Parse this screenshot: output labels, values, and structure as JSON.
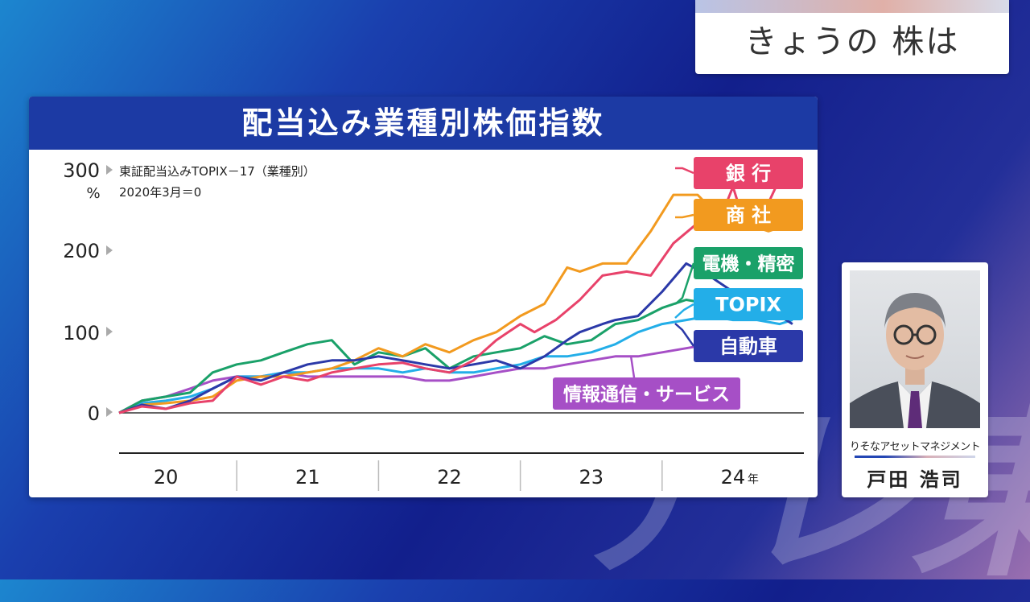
{
  "top_banner": {
    "title": "きょうの 株は"
  },
  "profile": {
    "organization": "りそなアセットマネジメント",
    "name": "戸田 浩司"
  },
  "watermark": "テレ東",
  "colors": {
    "bank": "#e8426a",
    "trading": "#f29a1f",
    "electronics": "#1aa169",
    "topix": "#23aee8",
    "auto": "#2b39a8",
    "infotech": "#a64fc6"
  },
  "chart_data": {
    "type": "line",
    "title": "配当込み業種別株価指数",
    "subtitle_line1": "東証配当込みTOPIX－17（業種別）",
    "subtitle_line2": "2020年3月＝0",
    "y_unit": "%",
    "ylim": [
      0,
      300
    ],
    "y_ticks": [
      "0",
      "100",
      "200",
      "300"
    ],
    "x_axis": {
      "range": [
        2020.17,
        2025.0
      ],
      "labels": [
        "20",
        "21",
        "22",
        "23",
        "24"
      ],
      "label_positions": [
        2020.5,
        2021.5,
        2022.5,
        2023.5,
        2024.5
      ],
      "dividers": [
        2021.0,
        2022.0,
        2023.0,
        2024.0
      ],
      "unit": "年"
    },
    "grid": false,
    "series": [
      {
        "name": "銀 行",
        "key": "bank",
        "x": [
          2020.17,
          2020.33,
          2020.5,
          2020.67,
          2020.83,
          2021.0,
          2021.17,
          2021.33,
          2021.5,
          2021.67,
          2021.83,
          2022.0,
          2022.17,
          2022.33,
          2022.5,
          2022.67,
          2022.83,
          2023.0,
          2023.1,
          2023.25,
          2023.42,
          2023.58,
          2023.75,
          2023.92,
          2024.08,
          2024.25,
          2024.42,
          2024.5,
          2024.58,
          2024.67,
          2024.83,
          2024.92
        ],
        "y": [
          0,
          8,
          5,
          12,
          15,
          45,
          35,
          45,
          40,
          50,
          55,
          60,
          62,
          55,
          50,
          65,
          90,
          110,
          100,
          115,
          140,
          170,
          175,
          170,
          210,
          235,
          245,
          280,
          235,
          230,
          290,
          300
        ]
      },
      {
        "name": "商 社",
        "key": "trading",
        "x": [
          2020.17,
          2020.33,
          2020.5,
          2020.67,
          2020.83,
          2021.0,
          2021.17,
          2021.33,
          2021.5,
          2021.67,
          2021.83,
          2022.0,
          2022.17,
          2022.33,
          2022.5,
          2022.67,
          2022.83,
          2023.0,
          2023.17,
          2023.33,
          2023.42,
          2023.58,
          2023.75,
          2023.92,
          2024.08,
          2024.25,
          2024.42,
          2024.58,
          2024.75,
          2024.92
        ],
        "y": [
          0,
          10,
          12,
          15,
          20,
          40,
          45,
          45,
          50,
          55,
          65,
          80,
          70,
          85,
          75,
          90,
          100,
          120,
          135,
          180,
          175,
          185,
          185,
          225,
          270,
          270,
          240,
          235,
          225,
          235
        ]
      },
      {
        "name": "電機・精密",
        "key": "electronics",
        "x": [
          2020.17,
          2020.33,
          2020.5,
          2020.67,
          2020.83,
          2021.0,
          2021.17,
          2021.33,
          2021.5,
          2021.67,
          2021.83,
          2022.0,
          2022.17,
          2022.33,
          2022.5,
          2022.67,
          2022.83,
          2023.0,
          2023.17,
          2023.33,
          2023.5,
          2023.67,
          2023.83,
          2024.0,
          2024.17,
          2024.33,
          2024.5,
          2024.67,
          2024.83,
          2024.92
        ],
        "y": [
          0,
          15,
          20,
          25,
          50,
          60,
          65,
          75,
          85,
          90,
          60,
          75,
          70,
          80,
          55,
          70,
          75,
          80,
          95,
          85,
          90,
          110,
          115,
          130,
          140,
          135,
          125,
          130,
          125,
          135
        ]
      },
      {
        "name": "TOPIX",
        "key": "topix",
        "x": [
          2020.17,
          2020.33,
          2020.5,
          2020.67,
          2020.83,
          2021.0,
          2021.17,
          2021.33,
          2021.5,
          2021.67,
          2021.83,
          2022.0,
          2022.17,
          2022.33,
          2022.5,
          2022.67,
          2022.83,
          2023.0,
          2023.17,
          2023.33,
          2023.5,
          2023.67,
          2023.83,
          2024.0,
          2024.17,
          2024.33,
          2024.5,
          2024.67,
          2024.83,
          2024.92
        ],
        "y": [
          0,
          12,
          15,
          20,
          30,
          45,
          45,
          50,
          50,
          55,
          55,
          55,
          50,
          55,
          50,
          50,
          55,
          60,
          70,
          70,
          75,
          85,
          100,
          110,
          115,
          120,
          115,
          115,
          110,
          115
        ]
      },
      {
        "name": "自動車",
        "key": "auto",
        "x": [
          2020.17,
          2020.33,
          2020.5,
          2020.67,
          2020.83,
          2021.0,
          2021.17,
          2021.33,
          2021.5,
          2021.67,
          2021.83,
          2022.0,
          2022.17,
          2022.33,
          2022.5,
          2022.67,
          2022.83,
          2023.0,
          2023.17,
          2023.33,
          2023.42,
          2023.58,
          2023.67,
          2023.83,
          2024.0,
          2024.17,
          2024.33,
          2024.5,
          2024.67,
          2024.83,
          2024.92
        ],
        "y": [
          0,
          10,
          5,
          15,
          30,
          45,
          40,
          50,
          60,
          65,
          65,
          70,
          65,
          60,
          55,
          60,
          65,
          55,
          70,
          90,
          100,
          110,
          115,
          120,
          150,
          185,
          170,
          150,
          120,
          120,
          110
        ]
      },
      {
        "name": "情報通信・サービス",
        "key": "infotech",
        "x": [
          2020.17,
          2020.33,
          2020.5,
          2020.67,
          2020.83,
          2021.0,
          2021.17,
          2021.33,
          2021.5,
          2021.67,
          2021.83,
          2022.0,
          2022.17,
          2022.33,
          2022.5,
          2022.67,
          2022.83,
          2023.0,
          2023.17,
          2023.33,
          2023.5,
          2023.67,
          2023.83,
          2024.0,
          2024.17,
          2024.33,
          2024.5,
          2024.67,
          2024.83,
          2024.92
        ],
        "y": [
          0,
          15,
          20,
          30,
          40,
          45,
          45,
          50,
          45,
          45,
          45,
          45,
          45,
          40,
          40,
          45,
          50,
          55,
          55,
          60,
          65,
          70,
          70,
          75,
          80,
          85,
          85,
          90,
          92,
          95
        ]
      }
    ]
  }
}
